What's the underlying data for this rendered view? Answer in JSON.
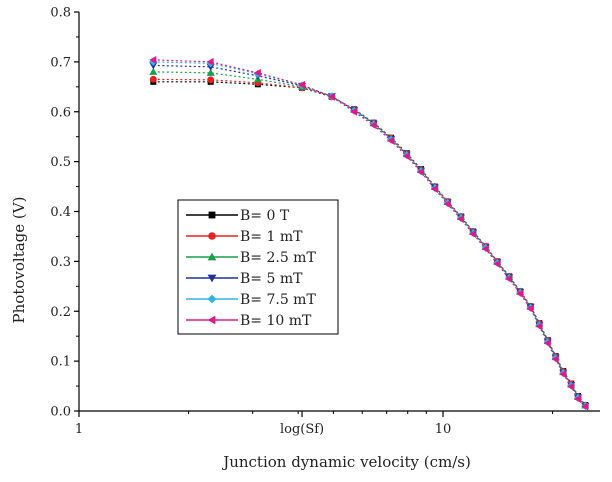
{
  "chart_data": {
    "type": "line",
    "x_scale": "log",
    "xlim": [
      1,
      27
    ],
    "ylim": [
      0,
      0.8
    ],
    "xlabel": "Junction dynamic velocity (cm/s)",
    "ylabel": "Photovoltage  (V)",
    "x_ticks": [
      {
        "value": 1,
        "label": "1"
      },
      {
        "value": 4.1,
        "label": "log(Sf)"
      },
      {
        "value": 10,
        "label": "10"
      }
    ],
    "y_ticks": [
      {
        "value": 0.0,
        "label": "0.0"
      },
      {
        "value": 0.1,
        "label": "0.1"
      },
      {
        "value": 0.2,
        "label": "0.2"
      },
      {
        "value": 0.3,
        "label": "0.3"
      },
      {
        "value": 0.4,
        "label": "0.4"
      },
      {
        "value": 0.5,
        "label": "0.5"
      },
      {
        "value": 0.6,
        "label": "0.6"
      },
      {
        "value": 0.7,
        "label": "0.7"
      },
      {
        "value": 0.8,
        "label": "0.8"
      }
    ],
    "legend_position": "center-left",
    "grid": false,
    "x": [
      1.6,
      2.3,
      3.1,
      4.1,
      4.95,
      5.7,
      6.45,
      7.2,
      7.95,
      8.7,
      9.5,
      10.3,
      11.2,
      12.1,
      13.1,
      14.1,
      15.2,
      16.3,
      17.4,
      18.4,
      19.4,
      20.4,
      21.4,
      22.5,
      23.5,
      24.6
    ],
    "series": [
      {
        "name": "B= 0 T",
        "color": "#000000",
        "marker": "square",
        "values": [
          0.66,
          0.66,
          0.655,
          0.648,
          0.63,
          0.605,
          0.578,
          0.548,
          0.517,
          0.485,
          0.45,
          0.42,
          0.39,
          0.36,
          0.33,
          0.3,
          0.27,
          0.24,
          0.21,
          0.176,
          0.142,
          0.11,
          0.08,
          0.055,
          0.03,
          0.012
        ]
      },
      {
        "name": "B= 1 mT",
        "color": "#e8211f",
        "marker": "circle",
        "values": [
          0.665,
          0.664,
          0.658,
          0.648,
          0.63,
          0.605,
          0.578,
          0.547,
          0.516,
          0.484,
          0.45,
          0.42,
          0.39,
          0.36,
          0.33,
          0.3,
          0.27,
          0.24,
          0.21,
          0.175,
          0.141,
          0.109,
          0.079,
          0.054,
          0.029,
          0.011
        ]
      },
      {
        "name": "B= 2.5 mT",
        "color": "#1a9e4a",
        "marker": "triangle-up",
        "values": [
          0.68,
          0.678,
          0.665,
          0.65,
          0.631,
          0.604,
          0.577,
          0.546,
          0.515,
          0.483,
          0.449,
          0.419,
          0.389,
          0.359,
          0.329,
          0.299,
          0.269,
          0.239,
          0.209,
          0.174,
          0.14,
          0.108,
          0.078,
          0.053,
          0.028,
          0.011
        ]
      },
      {
        "name": "B= 5 mT",
        "color": "#22319a",
        "marker": "triangle-down",
        "values": [
          0.693,
          0.69,
          0.672,
          0.652,
          0.631,
          0.603,
          0.576,
          0.545,
          0.514,
          0.482,
          0.448,
          0.418,
          0.388,
          0.358,
          0.328,
          0.298,
          0.268,
          0.238,
          0.208,
          0.173,
          0.139,
          0.107,
          0.077,
          0.052,
          0.027,
          0.01
        ]
      },
      {
        "name": "B= 7.5 mT",
        "color": "#2fb4e8",
        "marker": "diamond",
        "values": [
          0.7,
          0.697,
          0.676,
          0.653,
          0.631,
          0.602,
          0.575,
          0.544,
          0.513,
          0.481,
          0.447,
          0.417,
          0.387,
          0.357,
          0.327,
          0.297,
          0.267,
          0.237,
          0.207,
          0.172,
          0.138,
          0.106,
          0.076,
          0.051,
          0.026,
          0.01
        ]
      },
      {
        "name": "B= 10 mT",
        "color": "#e0198a",
        "marker": "triangle-left",
        "values": [
          0.704,
          0.7,
          0.678,
          0.654,
          0.63,
          0.6,
          0.573,
          0.542,
          0.511,
          0.479,
          0.445,
          0.415,
          0.385,
          0.355,
          0.325,
          0.295,
          0.265,
          0.235,
          0.205,
          0.17,
          0.136,
          0.104,
          0.074,
          0.049,
          0.024,
          0.009
        ]
      }
    ]
  }
}
